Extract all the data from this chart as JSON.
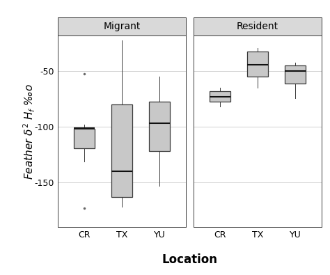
{
  "panels": [
    {
      "label": "Migrant",
      "boxes": [
        {
          "x": "CR",
          "median": -101,
          "q1": -119,
          "q3": -102,
          "whisker_low": -131,
          "whisker_high": -98,
          "outliers": [
            -52,
            -173
          ]
        },
        {
          "x": "TX",
          "median": -140,
          "q1": -163,
          "q3": -80,
          "whisker_low": -172,
          "whisker_high": -22,
          "outliers": []
        },
        {
          "x": "YU",
          "median": -97,
          "q1": -122,
          "q3": -77,
          "whisker_low": -153,
          "whisker_high": -55,
          "outliers": []
        }
      ]
    },
    {
      "label": "Resident",
      "boxes": [
        {
          "x": "CR",
          "median": -73,
          "q1": -77,
          "q3": -68,
          "whisker_low": -82,
          "whisker_high": -65,
          "outliers": []
        },
        {
          "x": "TX",
          "median": -44,
          "q1": -55,
          "q3": -32,
          "whisker_low": -65,
          "whisker_high": -29,
          "outliers": []
        },
        {
          "x": "YU",
          "median": -50,
          "q1": -61,
          "q3": -45,
          "whisker_low": -74,
          "whisker_high": -42,
          "outliers": []
        }
      ]
    }
  ],
  "ylim": [
    -190,
    -18
  ],
  "yticks": [
    -50,
    -100,
    -150
  ],
  "ylabel_line1": "Feather δ² H",
  "ylabel_sub": "f",
  "ylabel_line2": " ‰o",
  "xlabel": "Location",
  "box_color": "#c8c8c8",
  "box_edge_color": "#3a3a3a",
  "median_color": "#111111",
  "whisker_color": "#3a3a3a",
  "outlier_color": "#666666",
  "background_color": "#ffffff",
  "panel_header_color": "#d9d9d9",
  "grid_color": "#d0d0d0",
  "title_fontsize": 10,
  "label_fontsize": 11,
  "tick_fontsize": 9,
  "box_width": 0.55
}
